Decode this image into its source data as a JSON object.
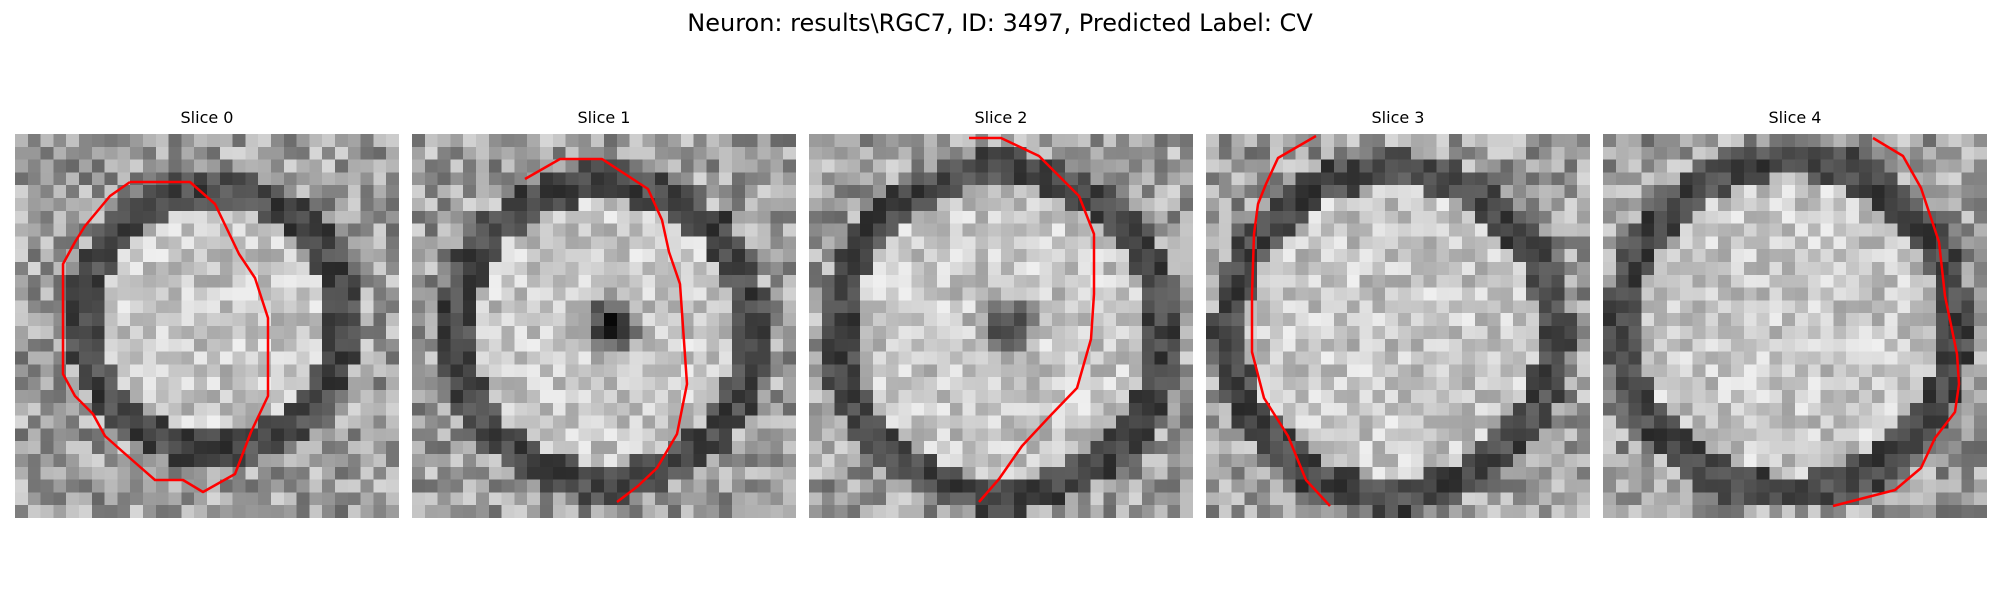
{
  "figure": {
    "title": "Neuron: results\\RGC7, ID: 3497, Predicted Label: CV",
    "outline_color": "#ff0000",
    "colormap": "grayscale"
  },
  "slices": [
    {
      "label": "Slice 0"
    },
    {
      "label": "Slice 1"
    },
    {
      "label": "Slice 2"
    },
    {
      "label": "Slice 3"
    },
    {
      "label": "Slice 4"
    }
  ]
}
